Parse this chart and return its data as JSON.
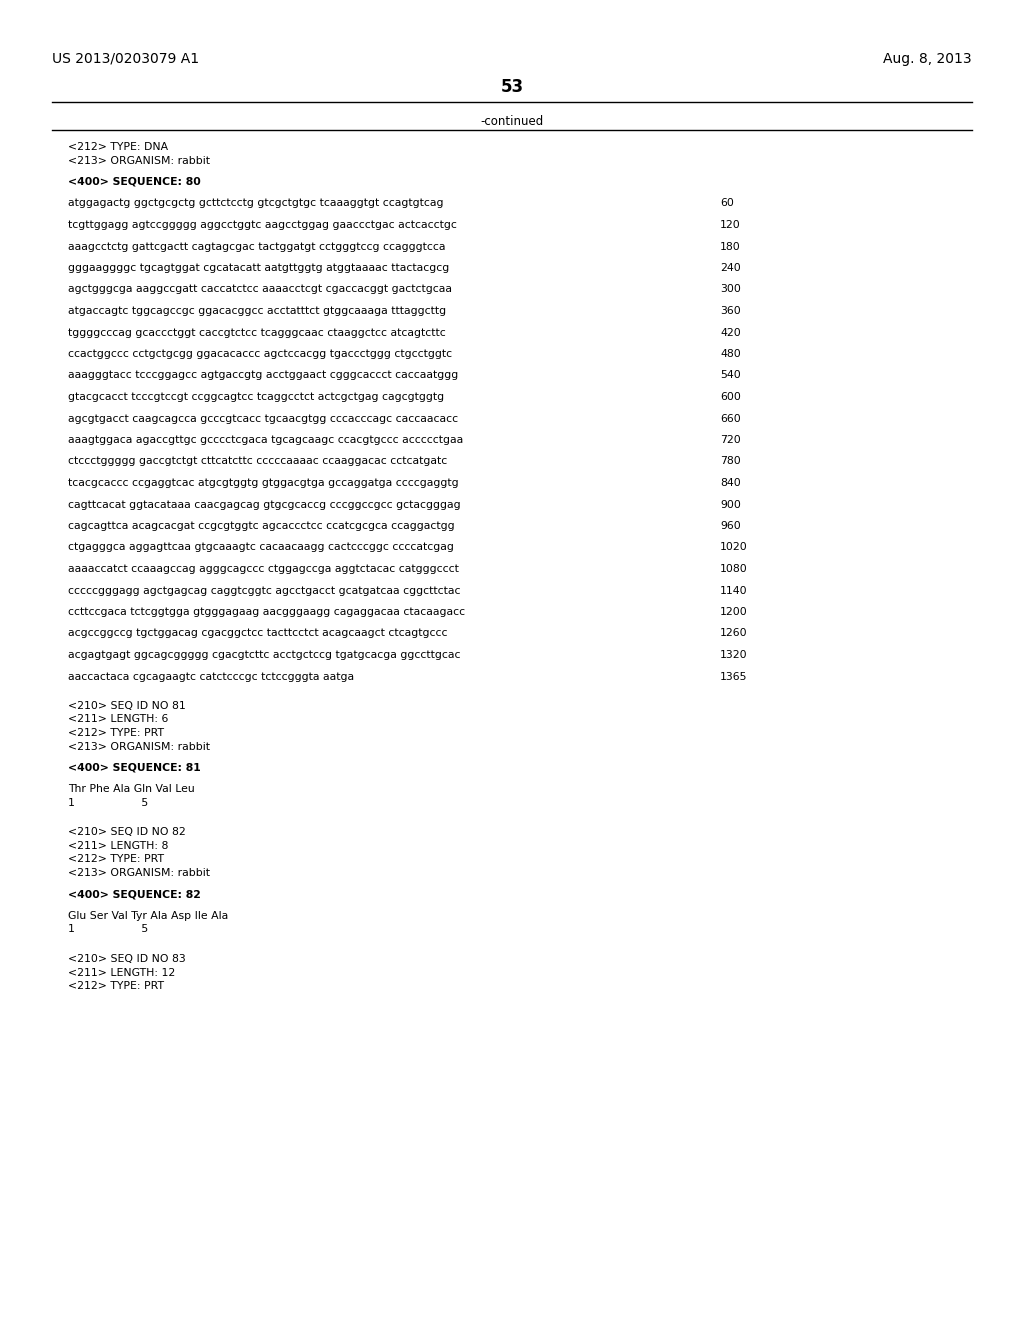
{
  "header_left": "US 2013/0203079 A1",
  "header_right": "Aug. 8, 2013",
  "page_number": "53",
  "continued_label": "-continued",
  "background_color": "#ffffff",
  "text_color": "#000000",
  "header_fontsize": 10.0,
  "page_num_fontsize": 12.0,
  "mono_fontsize": 7.8,
  "lines": [
    {
      "type": "meta",
      "text": "<212> TYPE: DNA"
    },
    {
      "type": "meta",
      "text": "<213> ORGANISM: rabbit"
    },
    {
      "type": "blank"
    },
    {
      "type": "meta_bold",
      "text": "<400> SEQUENCE: 80"
    },
    {
      "type": "blank"
    },
    {
      "type": "seq",
      "text": "atggagactg ggctgcgctg gcttctcctg gtcgctgtgc tcaaaggtgt ccagtgtcag",
      "num": "60"
    },
    {
      "type": "blank"
    },
    {
      "type": "seq",
      "text": "tcgttggagg agtccggggg aggcctggtc aagcctggag gaaccctgac actcacctgc",
      "num": "120"
    },
    {
      "type": "blank"
    },
    {
      "type": "seq",
      "text": "aaagcctctg gattcgactt cagtagcgac tactggatgt cctgggtccg ccagggtcca",
      "num": "180"
    },
    {
      "type": "blank"
    },
    {
      "type": "seq",
      "text": "gggaaggggc tgcagtggat cgcatacatt aatgttggtg atggtaaaac ttactacgcg",
      "num": "240"
    },
    {
      "type": "blank"
    },
    {
      "type": "seq",
      "text": "agctgggcga aaggccgatt caccatctcc aaaacctcgt cgaccacggt gactctgcaa",
      "num": "300"
    },
    {
      "type": "blank"
    },
    {
      "type": "seq",
      "text": "atgaccagtc tggcagccgc ggacacggcc acctatttct gtggcaaaga tttaggcttg",
      "num": "360"
    },
    {
      "type": "blank"
    },
    {
      "type": "seq",
      "text": "tggggcccag gcaccctggt caccgtctcc tcagggcaac ctaaggctcc atcagtcttc",
      "num": "420"
    },
    {
      "type": "blank"
    },
    {
      "type": "seq",
      "text": "ccactggccc cctgctgcgg ggacacaccc agctccacgg tgaccctggg ctgcctggtc",
      "num": "480"
    },
    {
      "type": "blank"
    },
    {
      "type": "seq",
      "text": "aaagggtacc tcccggagcc agtgaccgtg acctggaact cgggcaccct caccaatggg",
      "num": "540"
    },
    {
      "type": "blank"
    },
    {
      "type": "seq",
      "text": "gtacgcacct tcccgtccgt ccggcagtcc tcaggcctct actcgctgag cagcgtggtg",
      "num": "600"
    },
    {
      "type": "blank"
    },
    {
      "type": "seq",
      "text": "agcgtgacct caagcagcca gcccgtcacc tgcaacgtgg cccacccagc caccaacacc",
      "num": "660"
    },
    {
      "type": "blank"
    },
    {
      "type": "seq",
      "text": "aaagtggaca agaccgttgc gcccctcgaca tgcagcaagc ccacgtgccc accccctgaa",
      "num": "720"
    },
    {
      "type": "blank"
    },
    {
      "type": "seq",
      "text": "ctccctggggg gaccgtctgt cttcatcttc cccccaaaac ccaaggacac cctcatgatc",
      "num": "780"
    },
    {
      "type": "blank"
    },
    {
      "type": "seq",
      "text": "tcacgcaccc ccgaggtcac atgcgtggtg gtggacgtga gccaggatga ccccgaggtg",
      "num": "840"
    },
    {
      "type": "blank"
    },
    {
      "type": "seq",
      "text": "cagttcacat ggtacataaa caacgagcag gtgcgcaccg cccggccgcc gctacgggag",
      "num": "900"
    },
    {
      "type": "blank"
    },
    {
      "type": "seq",
      "text": "cagcagttca acagcacgat ccgcgtggtc agcaccctcc ccatcgcgca ccaggactgg",
      "num": "960"
    },
    {
      "type": "blank"
    },
    {
      "type": "seq",
      "text": "ctgagggca aggagttcaa gtgcaaagtc cacaacaagg cactcccggc ccccatcgag",
      "num": "1020"
    },
    {
      "type": "blank"
    },
    {
      "type": "seq",
      "text": "aaaaccatct ccaaagccag agggcagccc ctggagccga aggtctacac catgggccct",
      "num": "1080"
    },
    {
      "type": "blank"
    },
    {
      "type": "seq",
      "text": "cccccgggagg agctgagcag caggtcggtc agcctgacct gcatgatcaa cggcttctac",
      "num": "1140"
    },
    {
      "type": "blank"
    },
    {
      "type": "seq",
      "text": "ccttccgaca tctcggtgga gtgggagaag aacgggaagg cagaggacaa ctacaagacc",
      "num": "1200"
    },
    {
      "type": "blank"
    },
    {
      "type": "seq",
      "text": "acgccggccg tgctggacag cgacggctcc tacttcctct acagcaagct ctcagtgccc",
      "num": "1260"
    },
    {
      "type": "blank"
    },
    {
      "type": "seq",
      "text": "acgagtgagt ggcagcggggg cgacgtcttc acctgctccg tgatgcacga ggccttgcac",
      "num": "1320"
    },
    {
      "type": "blank"
    },
    {
      "type": "seq",
      "text": "aaccactaca cgcagaagtc catctcccgc tctccgggta aatga",
      "num": "1365"
    },
    {
      "type": "blank"
    },
    {
      "type": "blank"
    },
    {
      "type": "meta",
      "text": "<210> SEQ ID NO 81"
    },
    {
      "type": "meta",
      "text": "<211> LENGTH: 6"
    },
    {
      "type": "meta",
      "text": "<212> TYPE: PRT"
    },
    {
      "type": "meta",
      "text": "<213> ORGANISM: rabbit"
    },
    {
      "type": "blank"
    },
    {
      "type": "meta_bold",
      "text": "<400> SEQUENCE: 81"
    },
    {
      "type": "blank"
    },
    {
      "type": "seq",
      "text": "Thr Phe Ala Gln Val Leu",
      "num": ""
    },
    {
      "type": "seq_num_only",
      "text": "1                   5"
    },
    {
      "type": "blank"
    },
    {
      "type": "blank"
    },
    {
      "type": "meta",
      "text": "<210> SEQ ID NO 82"
    },
    {
      "type": "meta",
      "text": "<211> LENGTH: 8"
    },
    {
      "type": "meta",
      "text": "<212> TYPE: PRT"
    },
    {
      "type": "meta",
      "text": "<213> ORGANISM: rabbit"
    },
    {
      "type": "blank"
    },
    {
      "type": "meta_bold",
      "text": "<400> SEQUENCE: 82"
    },
    {
      "type": "blank"
    },
    {
      "type": "seq",
      "text": "Glu Ser Val Tyr Ala Asp Ile Ala",
      "num": ""
    },
    {
      "type": "seq_num_only",
      "text": "1                   5"
    },
    {
      "type": "blank"
    },
    {
      "type": "blank"
    },
    {
      "type": "meta",
      "text": "<210> SEQ ID NO 83"
    },
    {
      "type": "meta",
      "text": "<211> LENGTH: 12"
    },
    {
      "type": "meta",
      "text": "<212> TYPE: PRT"
    }
  ]
}
